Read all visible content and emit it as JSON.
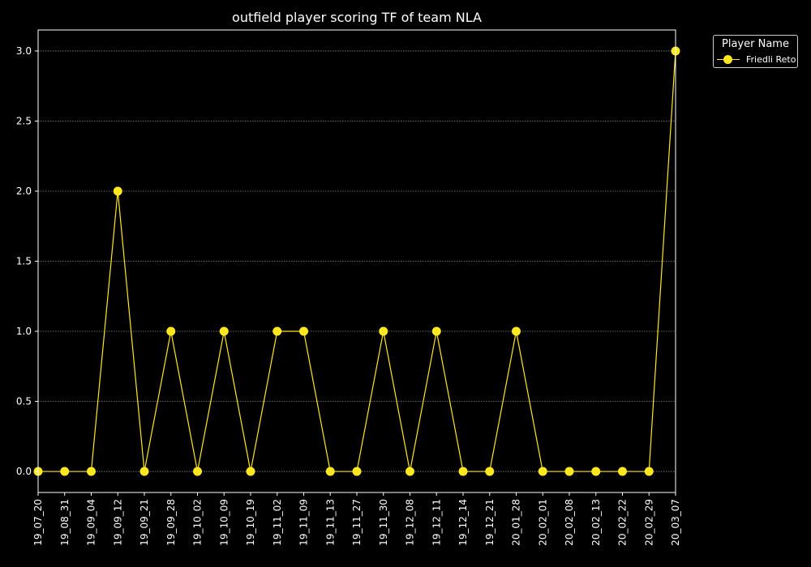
{
  "chart_data": {
    "type": "line",
    "title": "outfield player scoring TF of team NLA",
    "xlabel": "",
    "ylabel": "",
    "categories": [
      "19_07_20",
      "19_08_31",
      "19_09_04",
      "19_09_12",
      "19_09_21",
      "19_09_28",
      "19_10_02",
      "19_10_09",
      "19_10_19",
      "19_11_02",
      "19_11_09",
      "19_11_13",
      "19_11_27",
      "19_11_30",
      "19_12_08",
      "19_12_11",
      "19_12_14",
      "19_12_21",
      "20_01_28",
      "20_02_01",
      "20_02_08",
      "20_02_13",
      "20_02_22",
      "20_02_29",
      "20_03_07"
    ],
    "series": [
      {
        "name": "Friedli Reto",
        "values": [
          0,
          0,
          0,
          2,
          0,
          1,
          0,
          1,
          0,
          1,
          1,
          0,
          0,
          1,
          0,
          1,
          0,
          0,
          1,
          0,
          0,
          0,
          0,
          0,
          3
        ]
      }
    ],
    "ylim": [
      -0.15,
      3.15
    ],
    "yticks": [
      "0.0",
      "0.5",
      "1.0",
      "1.5",
      "2.0",
      "2.5",
      "3.0"
    ],
    "grid": true,
    "legend": {
      "title": "Player Name",
      "placement": "outside-top-right"
    },
    "colors": {
      "background": "#000000",
      "axes": "#ffffff",
      "grid": "#888888",
      "series": "#ffe81f"
    }
  }
}
